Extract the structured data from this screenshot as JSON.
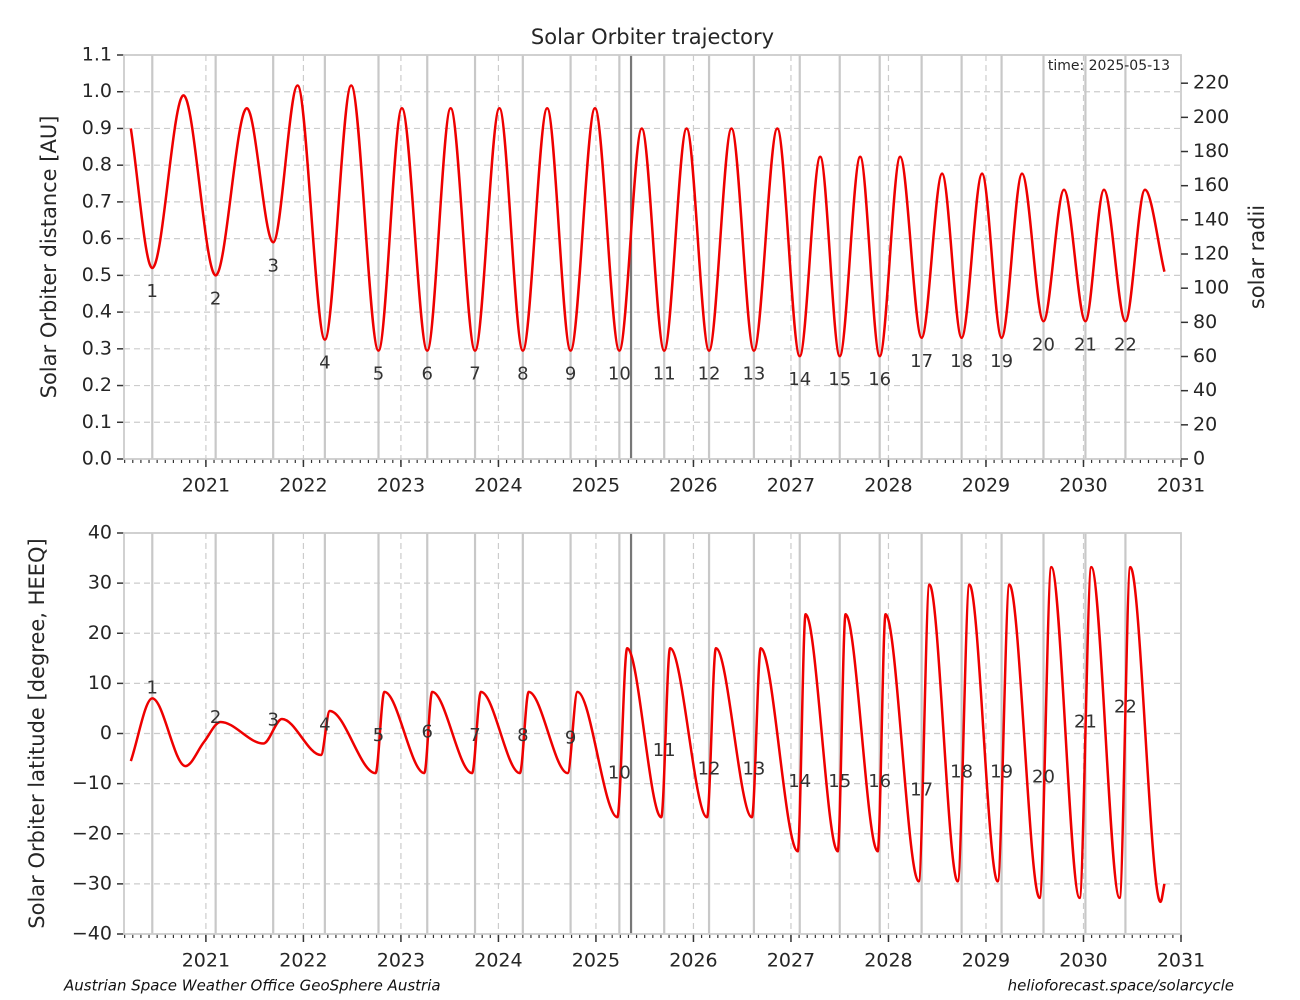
{
  "chart_data": [
    {
      "type": "line",
      "title": "Solar Orbiter trajectory",
      "ylabel": "Solar Orbiter distance [AU]",
      "y2label": "solar radii",
      "time_label": "time: 2025-05-13",
      "current_x": 2025.36,
      "current_color": "#777777",
      "x": [
        2020.23,
        2020.45,
        2020.77,
        2021.1,
        2021.42,
        2021.69,
        2021.94,
        2022.22,
        2022.49,
        2022.77,
        2023.01,
        2023.27,
        2023.51,
        2023.76,
        2024.01,
        2024.25,
        2024.5,
        2024.74,
        2024.99,
        2025.24,
        2025.47,
        2025.7,
        2025.93,
        2026.16,
        2026.39,
        2026.62,
        2026.86,
        2027.09,
        2027.3,
        2027.5,
        2027.71,
        2027.91,
        2028.12,
        2028.34,
        2028.55,
        2028.75,
        2028.96,
        2029.16,
        2029.37,
        2029.59,
        2029.8,
        2030.02,
        2030.21,
        2030.43,
        2030.63,
        2030.83
      ],
      "values": [
        0.9,
        0.52,
        0.99,
        0.5,
        0.955,
        0.59,
        1.017,
        0.325,
        1.017,
        0.295,
        0.955,
        0.295,
        0.955,
        0.295,
        0.955,
        0.295,
        0.955,
        0.295,
        0.955,
        0.295,
        0.9,
        0.295,
        0.9,
        0.295,
        0.9,
        0.295,
        0.9,
        0.28,
        0.823,
        0.28,
        0.823,
        0.28,
        0.823,
        0.33,
        0.777,
        0.33,
        0.777,
        0.33,
        0.777,
        0.375,
        0.733,
        0.375,
        0.733,
        0.375,
        0.733,
        0.51
      ],
      "color": "#ee0000",
      "xlim": [
        2020.16,
        2031
      ],
      "xticks": [
        2021,
        2022,
        2023,
        2024,
        2025,
        2026,
        2027,
        2028,
        2029,
        2030,
        2031
      ],
      "minor_ticks_per_year": 12,
      "ylim": [
        0,
        1.1
      ],
      "yticks": [
        {
          "value": 0,
          "label": "0.0"
        },
        0.1,
        0.2,
        0.3,
        0.4,
        0.5,
        0.6,
        0.7,
        0.8,
        0.9,
        {
          "value": 1,
          "label": "1.0"
        },
        1.1
      ],
      "y2lim": [
        0,
        236.5
      ],
      "y2ticks": [
        0,
        20,
        40,
        60,
        80,
        100,
        120,
        140,
        160,
        180,
        200,
        220
      ],
      "grid": true,
      "perihelion_color": "#c8c8c8",
      "label_offset": 24,
      "perihelia": {
        "x": [
          2020.45,
          2021.1,
          2021.69,
          2022.22,
          2022.77,
          2023.27,
          2023.76,
          2024.25,
          2024.74,
          2025.24,
          2025.7,
          2026.16,
          2026.62,
          2027.09,
          2027.5,
          2027.91,
          2028.34,
          2028.75,
          2029.16,
          2029.59,
          2030.02,
          2030.43
        ],
        "labels": [
          "1",
          "2",
          "3",
          "4",
          "5",
          "6",
          "7",
          "8",
          "9",
          "10",
          "11",
          "12",
          "13",
          "14",
          "15",
          "16",
          "17",
          "18",
          "19",
          "20",
          "21",
          "22"
        ]
      }
    },
    {
      "type": "line",
      "ylabel": "Solar Orbiter latitude [degree, HEEQ]",
      "current_x": 2025.36,
      "current_color": "#777777",
      "x": [
        2020.23,
        2020.45,
        2020.79,
        2020.98,
        2021.15,
        2021.59,
        2021.78,
        2022.18,
        2022.27,
        2022.74,
        2022.83,
        2023.24,
        2023.32,
        2023.73,
        2023.82,
        2024.22,
        2024.31,
        2024.71,
        2024.81,
        2025.22,
        2025.32,
        2025.67,
        2025.76,
        2026.14,
        2026.23,
        2026.6,
        2026.69,
        2027.07,
        2027.15,
        2027.48,
        2027.56,
        2027.89,
        2027.97,
        2028.31,
        2028.42,
        2028.71,
        2028.83,
        2029.12,
        2029.24,
        2029.55,
        2029.67,
        2029.96,
        2030.08,
        2030.37,
        2030.48,
        2030.79,
        2030.83
      ],
      "values": [
        -5.5,
        7,
        -6.5,
        -1.7,
        2.3,
        -2,
        2.9,
        -4.3,
        4.5,
        -7.9,
        8.3,
        -7.9,
        8.3,
        -7.9,
        8.3,
        -7.9,
        8.3,
        -7.9,
        8.3,
        -16.7,
        17,
        -16.7,
        17,
        -16.7,
        17,
        -16.7,
        17,
        -23.5,
        23.8,
        -23.5,
        23.8,
        -23.5,
        23.8,
        -29.5,
        29.7,
        -29.5,
        29.7,
        -29.5,
        29.7,
        -32.8,
        33.2,
        -32.8,
        33.2,
        -32.8,
        33.2,
        -33.6,
        -30
      ],
      "color": "#ee0000",
      "xlim": [
        2020.16,
        2031
      ],
      "xticks": [
        2021,
        2022,
        2023,
        2024,
        2025,
        2026,
        2027,
        2028,
        2029,
        2030,
        2031
      ],
      "minor_ticks_per_year": 12,
      "ylim": [
        -40,
        40
      ],
      "yticks": [
        {
          "value": -40,
          "label": "−40"
        },
        {
          "value": -30,
          "label": "−30"
        },
        {
          "value": -20,
          "label": "−20"
        },
        {
          "value": -10,
          "label": "−10"
        },
        0,
        10,
        20,
        30,
        40
      ],
      "grid": true,
      "perihelion_color": "#c8c8c8",
      "label_offset": -10,
      "perihelia": {
        "x": [
          2020.45,
          2021.1,
          2021.69,
          2022.22,
          2022.77,
          2023.27,
          2023.76,
          2024.25,
          2024.74,
          2025.24,
          2025.7,
          2026.16,
          2026.62,
          2027.09,
          2027.5,
          2027.91,
          2028.34,
          2028.75,
          2029.16,
          2029.59,
          2030.02,
          2030.43
        ],
        "labels": [
          "1",
          "2",
          "3",
          "4",
          "5",
          "6",
          "7",
          "8",
          "9",
          "10",
          "11",
          "12",
          "13",
          "14",
          "15",
          "16",
          "17",
          "18",
          "19",
          "20",
          "21",
          "22"
        ]
      }
    }
  ],
  "footer": {
    "left": "Austrian Space Weather Office  GeoSphere Austria",
    "right": "helioforecast.space/solarcycle"
  }
}
